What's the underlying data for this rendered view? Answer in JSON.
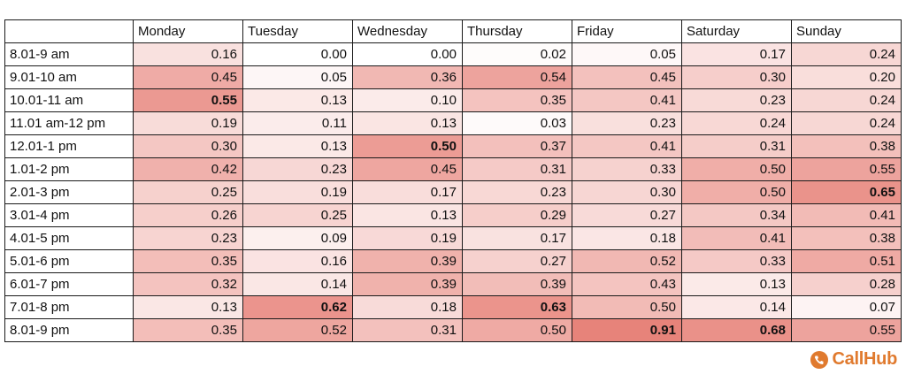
{
  "chart_data": {
    "type": "heatmap",
    "columns": [
      "Monday",
      "Tuesday",
      "Wednesday",
      "Thursday",
      "Friday",
      "Saturday",
      "Sunday"
    ],
    "rows": [
      "8.01-9 am",
      "9.01-10 am",
      "10.01-11 am",
      "11.01 am-12 pm",
      "12.01-1 pm",
      "1.01-2 pm",
      "2.01-3 pm",
      "3.01-4 pm",
      "4.01-5 pm",
      "5.01-6 pm",
      "6.01-7 pm",
      "7.01-8 pm",
      "8.01-9 pm"
    ],
    "values": [
      [
        "0.16",
        "0.00",
        "0.00",
        "0.02",
        "0.05",
        "0.17",
        "0.24"
      ],
      [
        "0.45",
        "0.05",
        "0.36",
        "0.54",
        "0.45",
        "0.30",
        "0.20"
      ],
      [
        "0.55",
        "0.13",
        "0.10",
        "0.35",
        "0.41",
        "0.23",
        "0.24"
      ],
      [
        "0.19",
        "0.11",
        "0.13",
        "0.03",
        "0.23",
        "0.24",
        "0.24"
      ],
      [
        "0.30",
        "0.13",
        "0.50",
        "0.37",
        "0.41",
        "0.31",
        "0.38"
      ],
      [
        "0.42",
        "0.23",
        "0.45",
        "0.31",
        "0.33",
        "0.50",
        "0.55"
      ],
      [
        "0.25",
        "0.19",
        "0.17",
        "0.23",
        "0.30",
        "0.50",
        "0.65"
      ],
      [
        "0.26",
        "0.25",
        "0.13",
        "0.29",
        "0.27",
        "0.34",
        "0.41"
      ],
      [
        "0.23",
        "0.09",
        "0.19",
        "0.17",
        "0.18",
        "0.41",
        "0.38"
      ],
      [
        "0.35",
        "0.16",
        "0.39",
        "0.27",
        "0.52",
        "0.33",
        "0.51"
      ],
      [
        "0.32",
        "0.14",
        "0.39",
        "0.39",
        "0.43",
        "0.13",
        "0.28"
      ],
      [
        "0.13",
        "0.62",
        "0.18",
        "0.63",
        "0.50",
        "0.14",
        "0.07"
      ],
      [
        "0.35",
        "0.52",
        "0.31",
        "0.50",
        "0.91",
        "0.68",
        "0.55"
      ]
    ],
    "column_max_bold": true,
    "color_scale": {
      "low": "#ffffff",
      "high": "#e67c73"
    }
  },
  "brand": {
    "name": "CallHub",
    "color": "#e07a2e"
  }
}
